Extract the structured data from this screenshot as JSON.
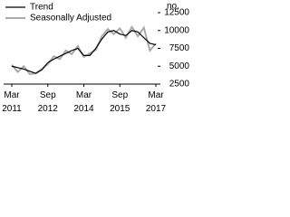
{
  "chart_data": {
    "type": "line",
    "y_unit": "no.",
    "categories": [
      "Mar 2011",
      null,
      null,
      null,
      null,
      null,
      "Sep 2012",
      null,
      null,
      null,
      null,
      null,
      "Mar 2014",
      null,
      null,
      null,
      null,
      null,
      "Sep 2015",
      null,
      null,
      null,
      null,
      null,
      "Mar 2017"
    ],
    "series": [
      {
        "name": "Trend",
        "color": "#000000",
        "values": [
          5000,
          4800,
          4600,
          4300,
          4000,
          4500,
          5500,
          6000,
          6400,
          6800,
          7200,
          7500,
          6500,
          6500,
          7500,
          8800,
          9800,
          10000,
          9500,
          9300,
          10000,
          9800,
          9000,
          8200,
          8000
        ]
      },
      {
        "name": "Seasonally Adjusted",
        "color": "#aaaaaa",
        "values": [
          5200,
          4200,
          5000,
          3900,
          4000,
          4600,
          5300,
          6400,
          6000,
          7200,
          6700,
          7800,
          6300,
          6800,
          7300,
          9200,
          10200,
          9500,
          10300,
          9000,
          10500,
          9200,
          10400,
          7200,
          8200
        ]
      }
    ],
    "ylim": [
      2500,
      12500
    ],
    "yticks": [
      2500,
      5000,
      7500,
      10000,
      12500
    ],
    "legend": "top-left"
  }
}
